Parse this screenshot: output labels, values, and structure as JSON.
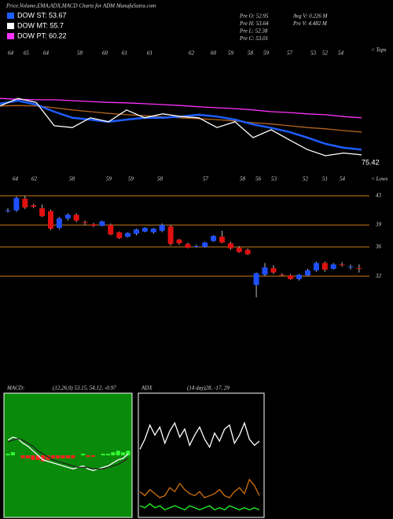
{
  "header": {
    "title": "Price,Volume,EMA,ADX,MACD Charts for ADM MunafaSutra.com",
    "legend": [
      {
        "text": "DOW ST: 53.67",
        "color": "#1e5eff"
      },
      {
        "text": "DOW MT: 55.7",
        "color": "#ffffff"
      },
      {
        "text": "DOW PT: 60.22",
        "color": "#ff33ff"
      }
    ],
    "stats": [
      "Pre O: 52.95",
      "Pre H: 53.64",
      "Pre L: 52.38",
      "Pre C: 53.01",
      "Avg V: 0.226 M",
      "Pre V: 4.482 M"
    ]
  },
  "chart_data": [
    {
      "type": "line",
      "ylim": [
        48,
        68
      ],
      "tops": [
        "64",
        "65",
        "64",
        "58",
        "60",
        "61",
        "61",
        "62",
        "60",
        "59",
        "58",
        "59",
        "57",
        "53",
        "52",
        "54"
      ],
      "tops_label": "< Tops",
      "lows": [
        "64",
        "62",
        "58",
        "59",
        "59",
        "58",
        "57",
        "58",
        "56",
        "53",
        "52",
        "51",
        "54"
      ],
      "lows_label": "< Lows",
      "last_label": "75.42",
      "series": [
        {
          "name": "DOW PT",
          "color": "#ff33ff",
          "values": [
            63.5,
            63.3,
            63.2,
            63.2,
            63.0,
            62.8,
            62.6,
            62.5,
            62.3,
            62.1,
            61.9,
            61.6,
            61.4,
            61.2,
            60.9,
            60.5,
            60.3,
            60.0,
            59.8,
            59.4,
            59.1
          ]
        },
        {
          "color": "#b5651d",
          "values": [
            61.8,
            61.9,
            61.8,
            61.4,
            60.9,
            60.5,
            60.1,
            59.8,
            59.6,
            59.3,
            59.1,
            58.9,
            58.7,
            58.4,
            58.0,
            57.7,
            57.3,
            56.9,
            56.6,
            56.2,
            55.9
          ]
        },
        {
          "name": "DOW ST",
          "color": "#1e5eff",
          "values": [
            62.3,
            63.0,
            62.1,
            60.5,
            59.1,
            58.7,
            58.2,
            58.7,
            59.1,
            59.1,
            59.4,
            59.8,
            59.4,
            58.7,
            57.6,
            56.8,
            55.9,
            54.6,
            53.2,
            52.3,
            51.9
          ]
        },
        {
          "name": "DOW MT",
          "color": "#ffffff",
          "values": [
            61.8,
            63.5,
            62.6,
            57.3,
            56.9,
            59.1,
            58.2,
            60.9,
            59.1,
            60.0,
            59.4,
            59.1,
            56.9,
            58.2,
            54.6,
            56.4,
            54.1,
            51.9,
            50.5,
            51.1,
            50.7
          ]
        }
      ]
    },
    {
      "type": "candlestick",
      "ylim": [
        28.9,
        44.5
      ],
      "yticks": [
        43,
        39,
        36,
        32
      ],
      "grid": true,
      "up_color": "#1f4fff",
      "down_color": "#e01010",
      "grid_color": "#c87a18",
      "open": [
        41.0,
        41.0,
        42.6,
        41.7,
        41.3,
        40.9,
        38.6,
        39.9,
        40.4,
        39.4,
        39.1,
        38.9,
        39.0,
        38.0,
        37.4,
        37.8,
        38.1,
        38.0,
        38.2,
        38.8,
        37.0,
        36.4,
        36.1,
        36.0,
        36.8,
        37.4,
        36.5,
        35.9,
        35.6,
        30.8,
        32.2,
        33.1,
        32.2,
        32.1,
        31.6,
        32.1,
        32.8,
        33.8,
        33.0,
        33.6,
        33.3,
        33.1
      ],
      "high": [
        41.3,
        42.9,
        43.0,
        41.9,
        41.8,
        41.1,
        40.1,
        40.6,
        40.6,
        39.6,
        39.3,
        39.6,
        39.2,
        38.1,
        38.0,
        38.5,
        38.7,
        38.6,
        39.2,
        39.0,
        37.1,
        36.6,
        36.3,
        36.7,
        37.6,
        38.2,
        36.7,
        36.1,
        35.8,
        32.5,
        33.8,
        33.5,
        32.4,
        32.3,
        32.3,
        33.0,
        34.0,
        34.0,
        33.8,
        33.9,
        33.6,
        33.6
      ],
      "low": [
        40.7,
        40.8,
        41.2,
        41.3,
        40.1,
        38.3,
        38.4,
        39.6,
        39.4,
        39.0,
        38.7,
        38.8,
        37.6,
        37.1,
        37.3,
        37.6,
        38.0,
        37.8,
        38.0,
        36.2,
        36.3,
        35.8,
        35.9,
        35.9,
        36.7,
        36.5,
        35.6,
        35.2,
        34.9,
        29.1,
        32.0,
        32.3,
        32.0,
        31.5,
        31.4,
        32.0,
        32.6,
        32.6,
        32.9,
        33.3,
        32.9,
        32.5
      ],
      "close": [
        41.0,
        42.7,
        41.4,
        41.5,
        40.2,
        38.5,
        39.9,
        40.4,
        39.6,
        39.3,
        38.9,
        39.5,
        37.7,
        37.2,
        37.9,
        38.4,
        38.6,
        38.5,
        39.0,
        36.4,
        36.5,
        35.9,
        36.1,
        36.6,
        37.5,
        36.6,
        35.8,
        35.3,
        35.0,
        32.4,
        33.2,
        32.5,
        32.1,
        31.6,
        32.2,
        32.8,
        33.8,
        32.9,
        33.6,
        33.5,
        33.3,
        33.0
      ]
    },
    {
      "type": "macd",
      "title": "MACD:",
      "subtitle": "(12,26,9) 53.15, 54.12, -0.97",
      "ylim": [
        -4,
        4
      ],
      "background": "#0a8a0a",
      "series": [
        {
          "color": "#ffffff",
          "values": [
            1.0,
            1.2,
            1.1,
            0.8,
            0.6,
            0.3,
            0.0,
            -0.3,
            -0.4,
            -0.5,
            -0.6,
            -0.7,
            -0.8,
            -0.9,
            -0.8,
            -0.7,
            -0.9,
            -1.0,
            -0.9,
            -0.8,
            -0.7,
            -0.5,
            -0.3,
            -0.2,
            0.1
          ]
        },
        {
          "color": "#222222",
          "values": [
            0.9,
            1.0,
            1.1,
            1.0,
            0.8,
            0.6,
            0.3,
            0.1,
            -0.1,
            -0.3,
            -0.4,
            -0.5,
            -0.6,
            -0.7,
            -0.8,
            -0.8,
            -0.8,
            -0.9,
            -0.9,
            -0.9,
            -0.8,
            -0.7,
            -0.6,
            -0.4,
            -0.2
          ]
        },
        {
          "style": "bar",
          "values": [
            0.1,
            0.2,
            0.0,
            -0.2,
            -0.2,
            -0.3,
            -0.3,
            -0.4,
            -0.3,
            -0.2,
            -0.2,
            -0.2,
            -0.2,
            -0.2,
            0.0,
            0.1,
            -0.1,
            -0.1,
            0.0,
            0.1,
            0.1,
            0.2,
            0.3,
            0.2,
            0.3
          ],
          "up_color": "#33ff33",
          "down_color": "#ff2222"
        }
      ]
    },
    {
      "type": "line",
      "title": "ADX",
      "subtitle": "(14  day)28, -17, 29",
      "ylim": [
        0,
        60
      ],
      "background": "#000000",
      "series": [
        {
          "color": "#ffffff",
          "values": [
            33,
            38,
            45,
            40,
            44,
            36,
            42,
            46,
            39,
            43,
            35,
            40,
            44,
            38,
            34,
            41,
            37,
            43,
            45,
            36,
            40,
            46,
            38,
            35,
            37
          ]
        },
        {
          "color": "#d07010",
          "values": [
            12,
            10,
            13,
            11,
            9,
            10,
            14,
            12,
            16,
            13,
            11,
            10,
            12,
            9,
            10,
            11,
            13,
            10,
            9,
            12,
            14,
            11,
            18,
            15,
            10
          ]
        },
        {
          "color": "#22ff22",
          "values": [
            5,
            4,
            6,
            4,
            5,
            3,
            4,
            5,
            4,
            3,
            5,
            4,
            3,
            4,
            5,
            3,
            4,
            3,
            5,
            4,
            3,
            4,
            3,
            4,
            3
          ]
        }
      ]
    }
  ]
}
